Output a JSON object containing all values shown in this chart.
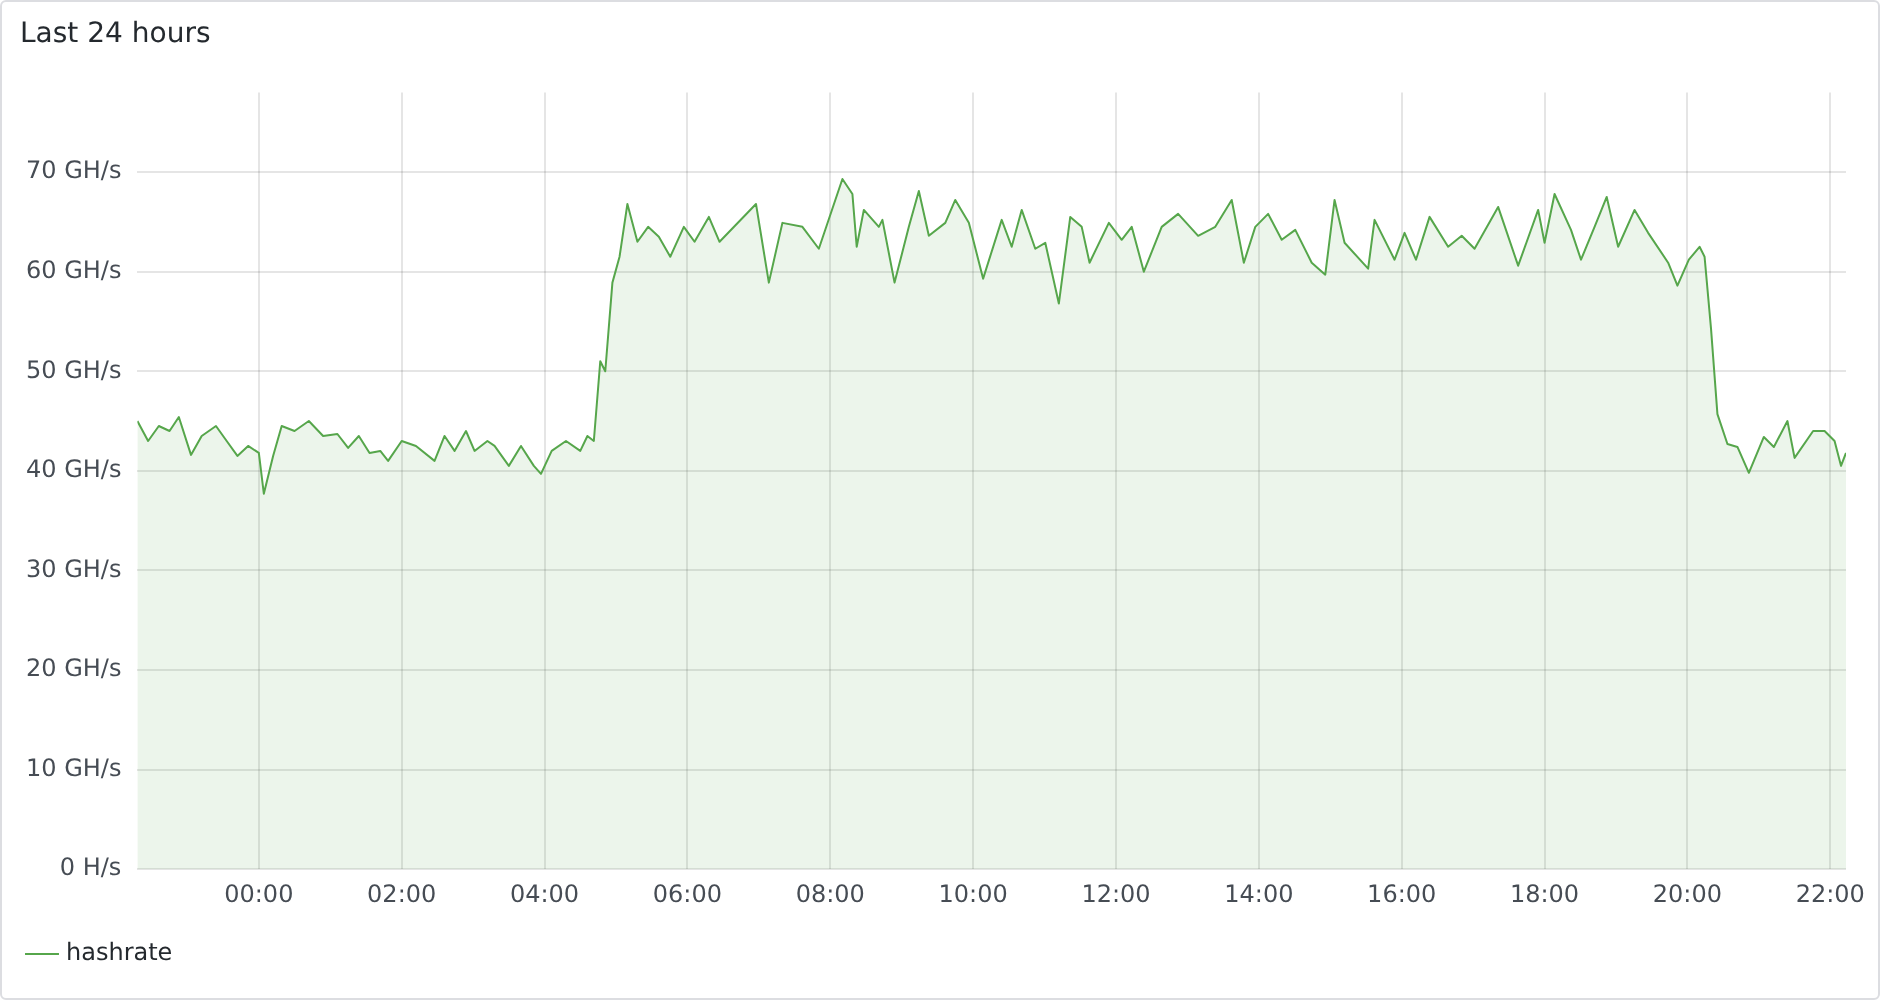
{
  "chart_data": {
    "type": "area",
    "title": "Last 24 hours",
    "grid": true,
    "legend": "bottom",
    "marker": "none",
    "line_style": "solid",
    "xlim": [
      -1.7,
      22.22
    ],
    "ylim": [
      0,
      78
    ],
    "xticks": [
      {
        "value": 0,
        "label": "00:00"
      },
      {
        "value": 2,
        "label": "02:00"
      },
      {
        "value": 4,
        "label": "04:00"
      },
      {
        "value": 6,
        "label": "06:00"
      },
      {
        "value": 8,
        "label": "08:00"
      },
      {
        "value": 10,
        "label": "10:00"
      },
      {
        "value": 12,
        "label": "12:00"
      },
      {
        "value": 14,
        "label": "14:00"
      },
      {
        "value": 16,
        "label": "16:00"
      },
      {
        "value": 18,
        "label": "18:00"
      },
      {
        "value": 20,
        "label": "20:00"
      },
      {
        "value": 22,
        "label": "22:00"
      }
    ],
    "yticks": [
      {
        "value": 0,
        "label": "0 H/s"
      },
      {
        "value": 10,
        "label": "10 GH/s"
      },
      {
        "value": 20,
        "label": "20 GH/s"
      },
      {
        "value": 30,
        "label": "30 GH/s"
      },
      {
        "value": 40,
        "label": "40 GH/s"
      },
      {
        "value": 50,
        "label": "50 GH/s"
      },
      {
        "value": 60,
        "label": "60 GH/s"
      },
      {
        "value": 70,
        "label": "70 GH/s"
      }
    ],
    "x": [
      -1.7,
      -1.55,
      -1.4,
      -1.25,
      -1.12,
      -0.95,
      -0.8,
      -0.6,
      -0.45,
      -0.3,
      -0.15,
      0.0,
      0.07,
      0.2,
      0.32,
      0.5,
      0.7,
      0.9,
      1.1,
      1.25,
      1.4,
      1.55,
      1.7,
      1.81,
      2.0,
      2.2,
      2.46,
      2.6,
      2.74,
      2.9,
      3.02,
      3.2,
      3.3,
      3.5,
      3.67,
      3.85,
      3.95,
      4.1,
      4.3,
      4.5,
      4.6,
      4.69,
      4.78,
      4.85,
      4.95,
      5.05,
      5.16,
      5.3,
      5.45,
      5.6,
      5.76,
      5.95,
      6.1,
      6.3,
      6.45,
      6.96,
      7.14,
      7.33,
      7.61,
      7.84,
      8.17,
      8.31,
      8.37,
      8.47,
      8.68,
      8.73,
      8.9,
      9.1,
      9.24,
      9.38,
      9.61,
      9.75,
      9.94,
      10.14,
      10.4,
      10.54,
      10.68,
      10.87,
      11.01,
      11.2,
      11.36,
      11.52,
      11.63,
      11.9,
      12.08,
      12.22,
      12.39,
      12.64,
      12.87,
      13.15,
      13.39,
      13.62,
      13.79,
      13.95,
      14.13,
      14.32,
      14.51,
      14.74,
      14.93,
      15.06,
      15.2,
      15.53,
      15.62,
      15.9,
      16.04,
      16.2,
      16.39,
      16.65,
      16.84,
      17.02,
      17.35,
      17.63,
      17.91,
      18.0,
      18.14,
      18.37,
      18.51,
      18.7,
      18.87,
      19.03,
      19.26,
      19.45,
      19.73,
      19.86,
      20.02,
      20.17,
      20.24,
      20.33,
      20.42,
      20.56,
      20.7,
      20.86,
      21.07,
      21.21,
      21.4,
      21.5,
      21.76,
      21.92,
      22.06,
      22.15,
      22.22
    ],
    "series": [
      {
        "name": "hashrate",
        "color": "#56a64b",
        "values": [
          45.0,
          43.0,
          44.5,
          44.0,
          45.4,
          41.6,
          43.5,
          44.5,
          43.0,
          41.5,
          42.5,
          41.8,
          37.7,
          41.5,
          44.5,
          44.0,
          45.0,
          43.5,
          43.7,
          42.3,
          43.5,
          41.8,
          42.0,
          41.0,
          43.0,
          42.5,
          41.0,
          43.5,
          42.0,
          44.0,
          42.0,
          43.0,
          42.5,
          40.5,
          42.5,
          40.5,
          39.7,
          42.0,
          43.0,
          42.0,
          43.5,
          43.0,
          51.0,
          50.0,
          58.9,
          61.5,
          66.8,
          63.0,
          64.5,
          63.5,
          61.5,
          64.5,
          63.0,
          65.5,
          63.0,
          66.8,
          58.9,
          64.9,
          64.5,
          62.3,
          69.3,
          67.8,
          62.5,
          66.2,
          64.5,
          65.2,
          58.9,
          64.5,
          68.1,
          63.6,
          64.9,
          67.2,
          64.9,
          59.3,
          65.2,
          62.5,
          66.2,
          62.3,
          62.9,
          56.8,
          65.5,
          64.5,
          60.9,
          64.9,
          63.2,
          64.5,
          60.0,
          64.5,
          65.8,
          63.6,
          64.5,
          67.2,
          60.9,
          64.5,
          65.8,
          63.2,
          64.2,
          60.9,
          59.7,
          67.2,
          62.9,
          60.3,
          65.2,
          61.2,
          63.9,
          61.2,
          65.5,
          62.5,
          63.6,
          62.3,
          66.5,
          60.6,
          66.2,
          62.9,
          67.8,
          64.2,
          61.2,
          64.5,
          67.5,
          62.5,
          66.2,
          63.9,
          60.9,
          58.6,
          61.2,
          62.5,
          61.5,
          54.3,
          45.7,
          42.7,
          42.4,
          39.8,
          43.4,
          42.4,
          45.0,
          41.3,
          44.0,
          44.0,
          43.0,
          40.5,
          41.8
        ]
      }
    ]
  }
}
